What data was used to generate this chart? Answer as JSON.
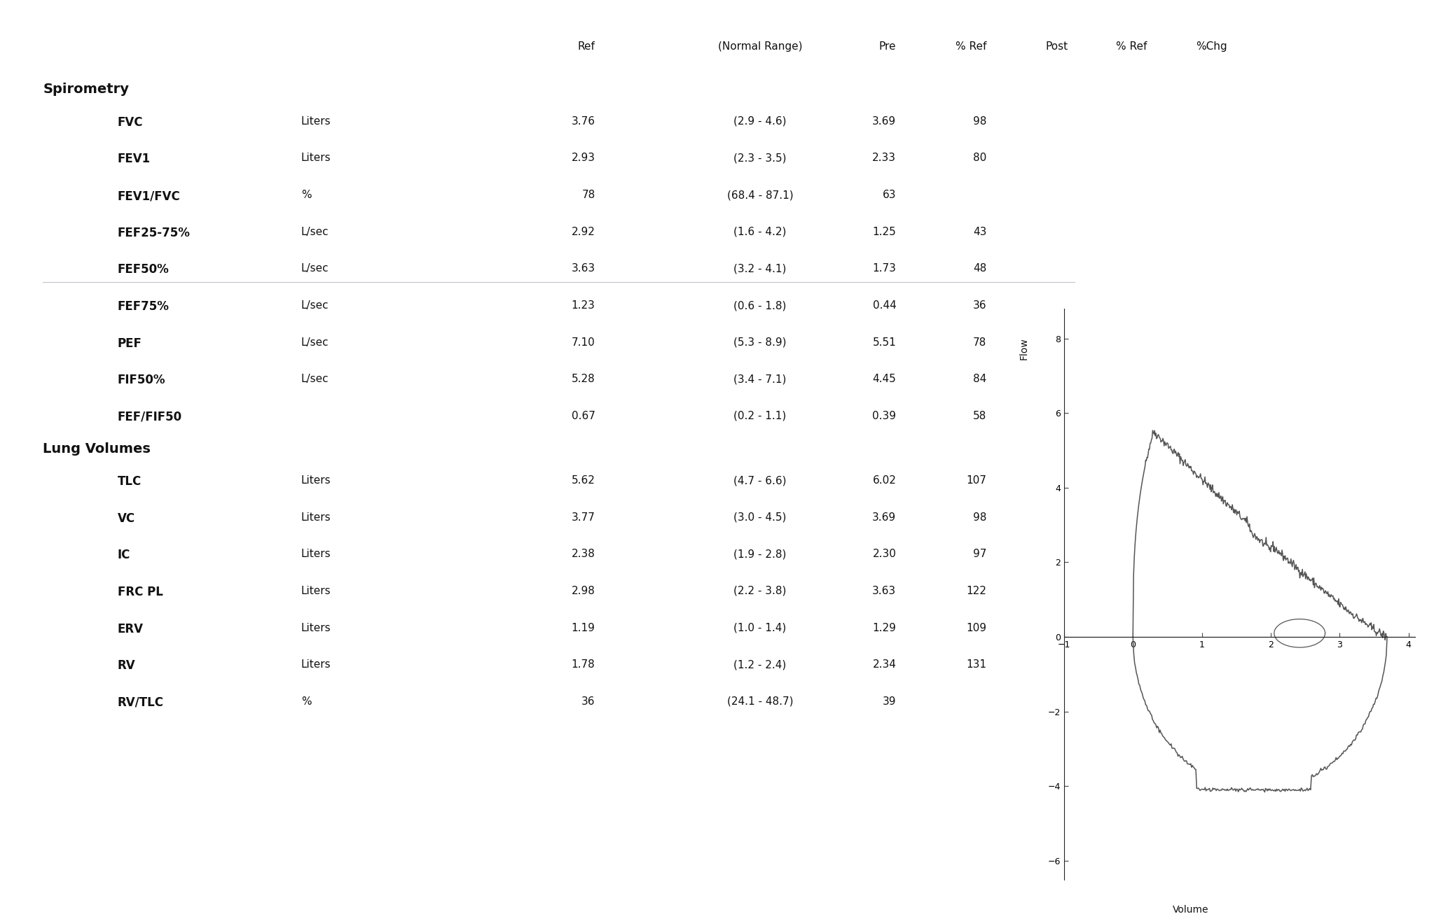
{
  "bg_color": "#ffffff",
  "spirometry_header": "Spirometry",
  "lung_volumes_header": "Lung Volumes",
  "col_headers": [
    "Ref",
    "(Normal Range)",
    "Pre",
    "% Ref",
    "Post",
    "% Ref",
    "%Chg"
  ],
  "spirometry_rows": [
    {
      "param": "FVC",
      "unit": "Liters",
      "ref": "3.76",
      "range": "(2.9 - 4.6)",
      "pre": "3.69",
      "pref": "98",
      "post": "",
      "postref": "",
      "pchg": ""
    },
    {
      "param": "FEV1",
      "unit": "Liters",
      "ref": "2.93",
      "range": "(2.3 - 3.5)",
      "pre": "2.33",
      "pref": "80",
      "post": "",
      "postref": "",
      "pchg": ""
    },
    {
      "param": "FEV1/FVC",
      "unit": "%",
      "ref": "78",
      "range": "(68.4 - 87.1)",
      "pre": "63",
      "pref": "",
      "post": "",
      "postref": "",
      "pchg": ""
    },
    {
      "param": "FEF25-75%",
      "unit": "L/sec",
      "ref": "2.92",
      "range": "(1.6 - 4.2)",
      "pre": "1.25",
      "pref": "43",
      "post": "",
      "postref": "",
      "pchg": ""
    },
    {
      "param": "FEF50%",
      "unit": "L/sec",
      "ref": "3.63",
      "range": "(3.2 - 4.1)",
      "pre": "1.73",
      "pref": "48",
      "post": "",
      "postref": "",
      "pchg": ""
    },
    {
      "param": "FEF75%",
      "unit": "L/sec",
      "ref": "1.23",
      "range": "(0.6 - 1.8)",
      "pre": "0.44",
      "pref": "36",
      "post": "",
      "postref": "",
      "pchg": ""
    },
    {
      "param": "PEF",
      "unit": "L/sec",
      "ref": "7.10",
      "range": "(5.3 - 8.9)",
      "pre": "5.51",
      "pref": "78",
      "post": "",
      "postref": "",
      "pchg": ""
    },
    {
      "param": "FIF50%",
      "unit": "L/sec",
      "ref": "5.28",
      "range": "(3.4 - 7.1)",
      "pre": "4.45",
      "pref": "84",
      "post": "",
      "postref": "",
      "pchg": ""
    },
    {
      "param": "FEF/FIF50",
      "unit": "",
      "ref": "0.67",
      "range": "(0.2 - 1.1)",
      "pre": "0.39",
      "pref": "58",
      "post": "",
      "postref": "",
      "pchg": ""
    }
  ],
  "lung_rows": [
    {
      "param": "TLC",
      "unit": "Liters",
      "ref": "5.62",
      "range": "(4.7 - 6.6)",
      "pre": "6.02",
      "pref": "107",
      "post": "",
      "postref": "",
      "pchg": ""
    },
    {
      "param": "VC",
      "unit": "Liters",
      "ref": "3.77",
      "range": "(3.0 - 4.5)",
      "pre": "3.69",
      "pref": "98",
      "post": "",
      "postref": "",
      "pchg": ""
    },
    {
      "param": "IC",
      "unit": "Liters",
      "ref": "2.38",
      "range": "(1.9 - 2.8)",
      "pre": "2.30",
      "pref": "97",
      "post": "",
      "postref": "",
      "pchg": ""
    },
    {
      "param": "FRC PL",
      "unit": "Liters",
      "ref": "2.98",
      "range": "(2.2 - 3.8)",
      "pre": "3.63",
      "pref": "122",
      "post": "",
      "postref": "",
      "pchg": ""
    },
    {
      "param": "ERV",
      "unit": "Liters",
      "ref": "1.19",
      "range": "(1.0 - 1.4)",
      "pre": "1.29",
      "pref": "109",
      "post": "",
      "postref": "",
      "pchg": ""
    },
    {
      "param": "RV",
      "unit": "Liters",
      "ref": "1.78",
      "range": "(1.2 - 2.4)",
      "pre": "2.34",
      "pref": "131",
      "post": "",
      "postref": "",
      "pchg": ""
    },
    {
      "param": "RV/TLC",
      "unit": "%",
      "ref": "36",
      "range": "(24.1 - 48.7)",
      "pre": "39",
      "pref": "",
      "post": "",
      "postref": "",
      "pchg": ""
    }
  ],
  "curve_color": "#555555",
  "axis_color": "#222222",
  "text_color": "#111111",
  "header_fontsize": 14,
  "section_fontsize": 13,
  "label_fontsize": 11,
  "param_fontsize": 12
}
